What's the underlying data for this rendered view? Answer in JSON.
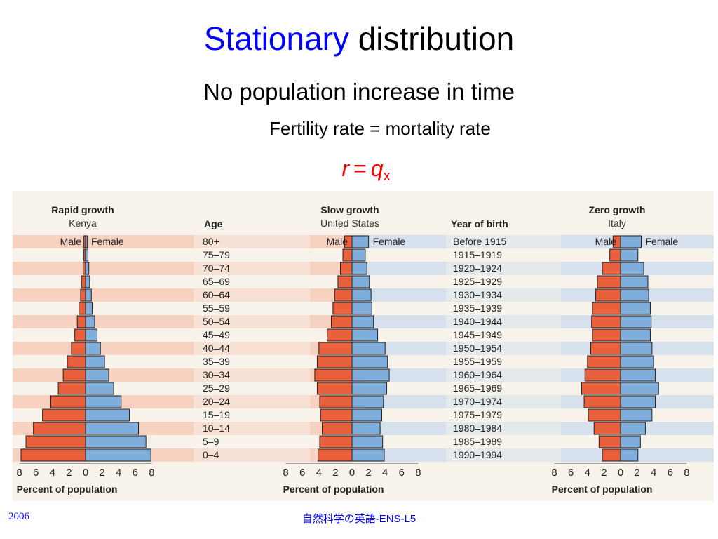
{
  "slide": {
    "title_accent": "Stationary",
    "title_rest": "distribution",
    "subtitle": "No population increase in time",
    "subsubtitle": "Fertility rate = mortality rate",
    "formula": {
      "left": "r",
      "eq": "=",
      "right": "q",
      "sub": "x"
    }
  },
  "footer": {
    "left": "2006",
    "center": "自然科学の英語-ENS-L5"
  },
  "colors": {
    "male": "#e8603c",
    "female": "#7faedd",
    "band_male": "#f6c9b6",
    "band_female": "#cddcee",
    "paper": "#f7f3ea"
  },
  "chart_data": [
    {
      "type": "bar",
      "title": "Rapid growth",
      "subtitle": "Kenya",
      "male_label": "Male",
      "female_label": "Female",
      "xlabel": "Percent of population",
      "xticks": [
        "8",
        "6",
        "4",
        "2",
        "0",
        "2",
        "4",
        "6",
        "8"
      ],
      "xlim": [
        -8,
        8
      ],
      "categories": [
        "80+",
        "75–79",
        "70–74",
        "65–69",
        "60–64",
        "55–59",
        "50–54",
        "45–49",
        "40–44",
        "35–39",
        "30–34",
        "25–29",
        "20–24",
        "15–19",
        "10–14",
        "5–9",
        "0–4"
      ],
      "series": [
        {
          "name": "Male",
          "values": [
            0.2,
            0.2,
            0.3,
            0.5,
            0.6,
            0.8,
            1.0,
            1.3,
            1.7,
            2.2,
            2.7,
            3.3,
            4.2,
            5.2,
            6.3,
            7.2,
            7.8
          ]
        },
        {
          "name": "Female",
          "values": [
            0.2,
            0.3,
            0.4,
            0.5,
            0.7,
            0.8,
            1.1,
            1.4,
            1.8,
            2.3,
            2.8,
            3.4,
            4.3,
            5.3,
            6.4,
            7.3,
            7.9
          ]
        }
      ]
    },
    {
      "type": "bar",
      "title": "Slow growth",
      "subtitle": "United States",
      "male_label": "Male",
      "female_label": "Female",
      "xlabel": "Percent of population",
      "xticks": [
        "8",
        "6",
        "4",
        "2",
        "0",
        "2",
        "4",
        "6",
        "8"
      ],
      "xlim": [
        -8,
        8
      ],
      "y_title": "Age",
      "categories": [
        "80+",
        "75–79",
        "70–74",
        "65–69",
        "60–64",
        "55–59",
        "50–54",
        "45–49",
        "40–44",
        "35–39",
        "30–34",
        "25–29",
        "20–24",
        "15–19",
        "10–14",
        "5–9",
        "0–4"
      ],
      "series": [
        {
          "name": "Male",
          "values": [
            0.9,
            1.1,
            1.4,
            1.7,
            2.1,
            2.3,
            2.5,
            3.0,
            4.0,
            4.2,
            4.5,
            4.2,
            3.9,
            3.8,
            3.6,
            3.9,
            4.1
          ]
        },
        {
          "name": "Female",
          "values": [
            2.0,
            1.6,
            1.8,
            2.1,
            2.3,
            2.4,
            2.6,
            3.1,
            4.0,
            4.3,
            4.5,
            4.2,
            3.8,
            3.6,
            3.4,
            3.7,
            3.9
          ]
        }
      ]
    },
    {
      "type": "bar",
      "title": "Zero growth",
      "subtitle": "Italy",
      "male_label": "Male",
      "female_label": "Female",
      "xlabel": "Percent of population",
      "xticks": [
        "8",
        "6",
        "4",
        "2",
        "0",
        "2",
        "4",
        "6",
        "8"
      ],
      "xlim": [
        -8,
        8
      ],
      "y_title": "Year of birth",
      "categories": [
        "Before 1915",
        "1915–1919",
        "1920–1924",
        "1925–1929",
        "1930–1934",
        "1935–1939",
        "1940–1944",
        "1945–1949",
        "1950–1954",
        "1955–1959",
        "1960–1964",
        "1965–1969",
        "1970–1974",
        "1975–1979",
        "1980–1984",
        "1985–1989",
        "1990–1994"
      ],
      "series": [
        {
          "name": "Male",
          "values": [
            0.9,
            1.3,
            2.2,
            2.8,
            3.0,
            3.4,
            3.5,
            3.4,
            3.6,
            4.0,
            4.3,
            4.7,
            4.4,
            3.9,
            3.2,
            2.6,
            2.2
          ]
        },
        {
          "name": "Female",
          "values": [
            2.5,
            2.1,
            2.8,
            3.3,
            3.4,
            3.6,
            3.7,
            3.6,
            3.8,
            4.0,
            4.2,
            4.6,
            4.2,
            3.8,
            3.0,
            2.4,
            2.1
          ]
        }
      ]
    }
  ]
}
